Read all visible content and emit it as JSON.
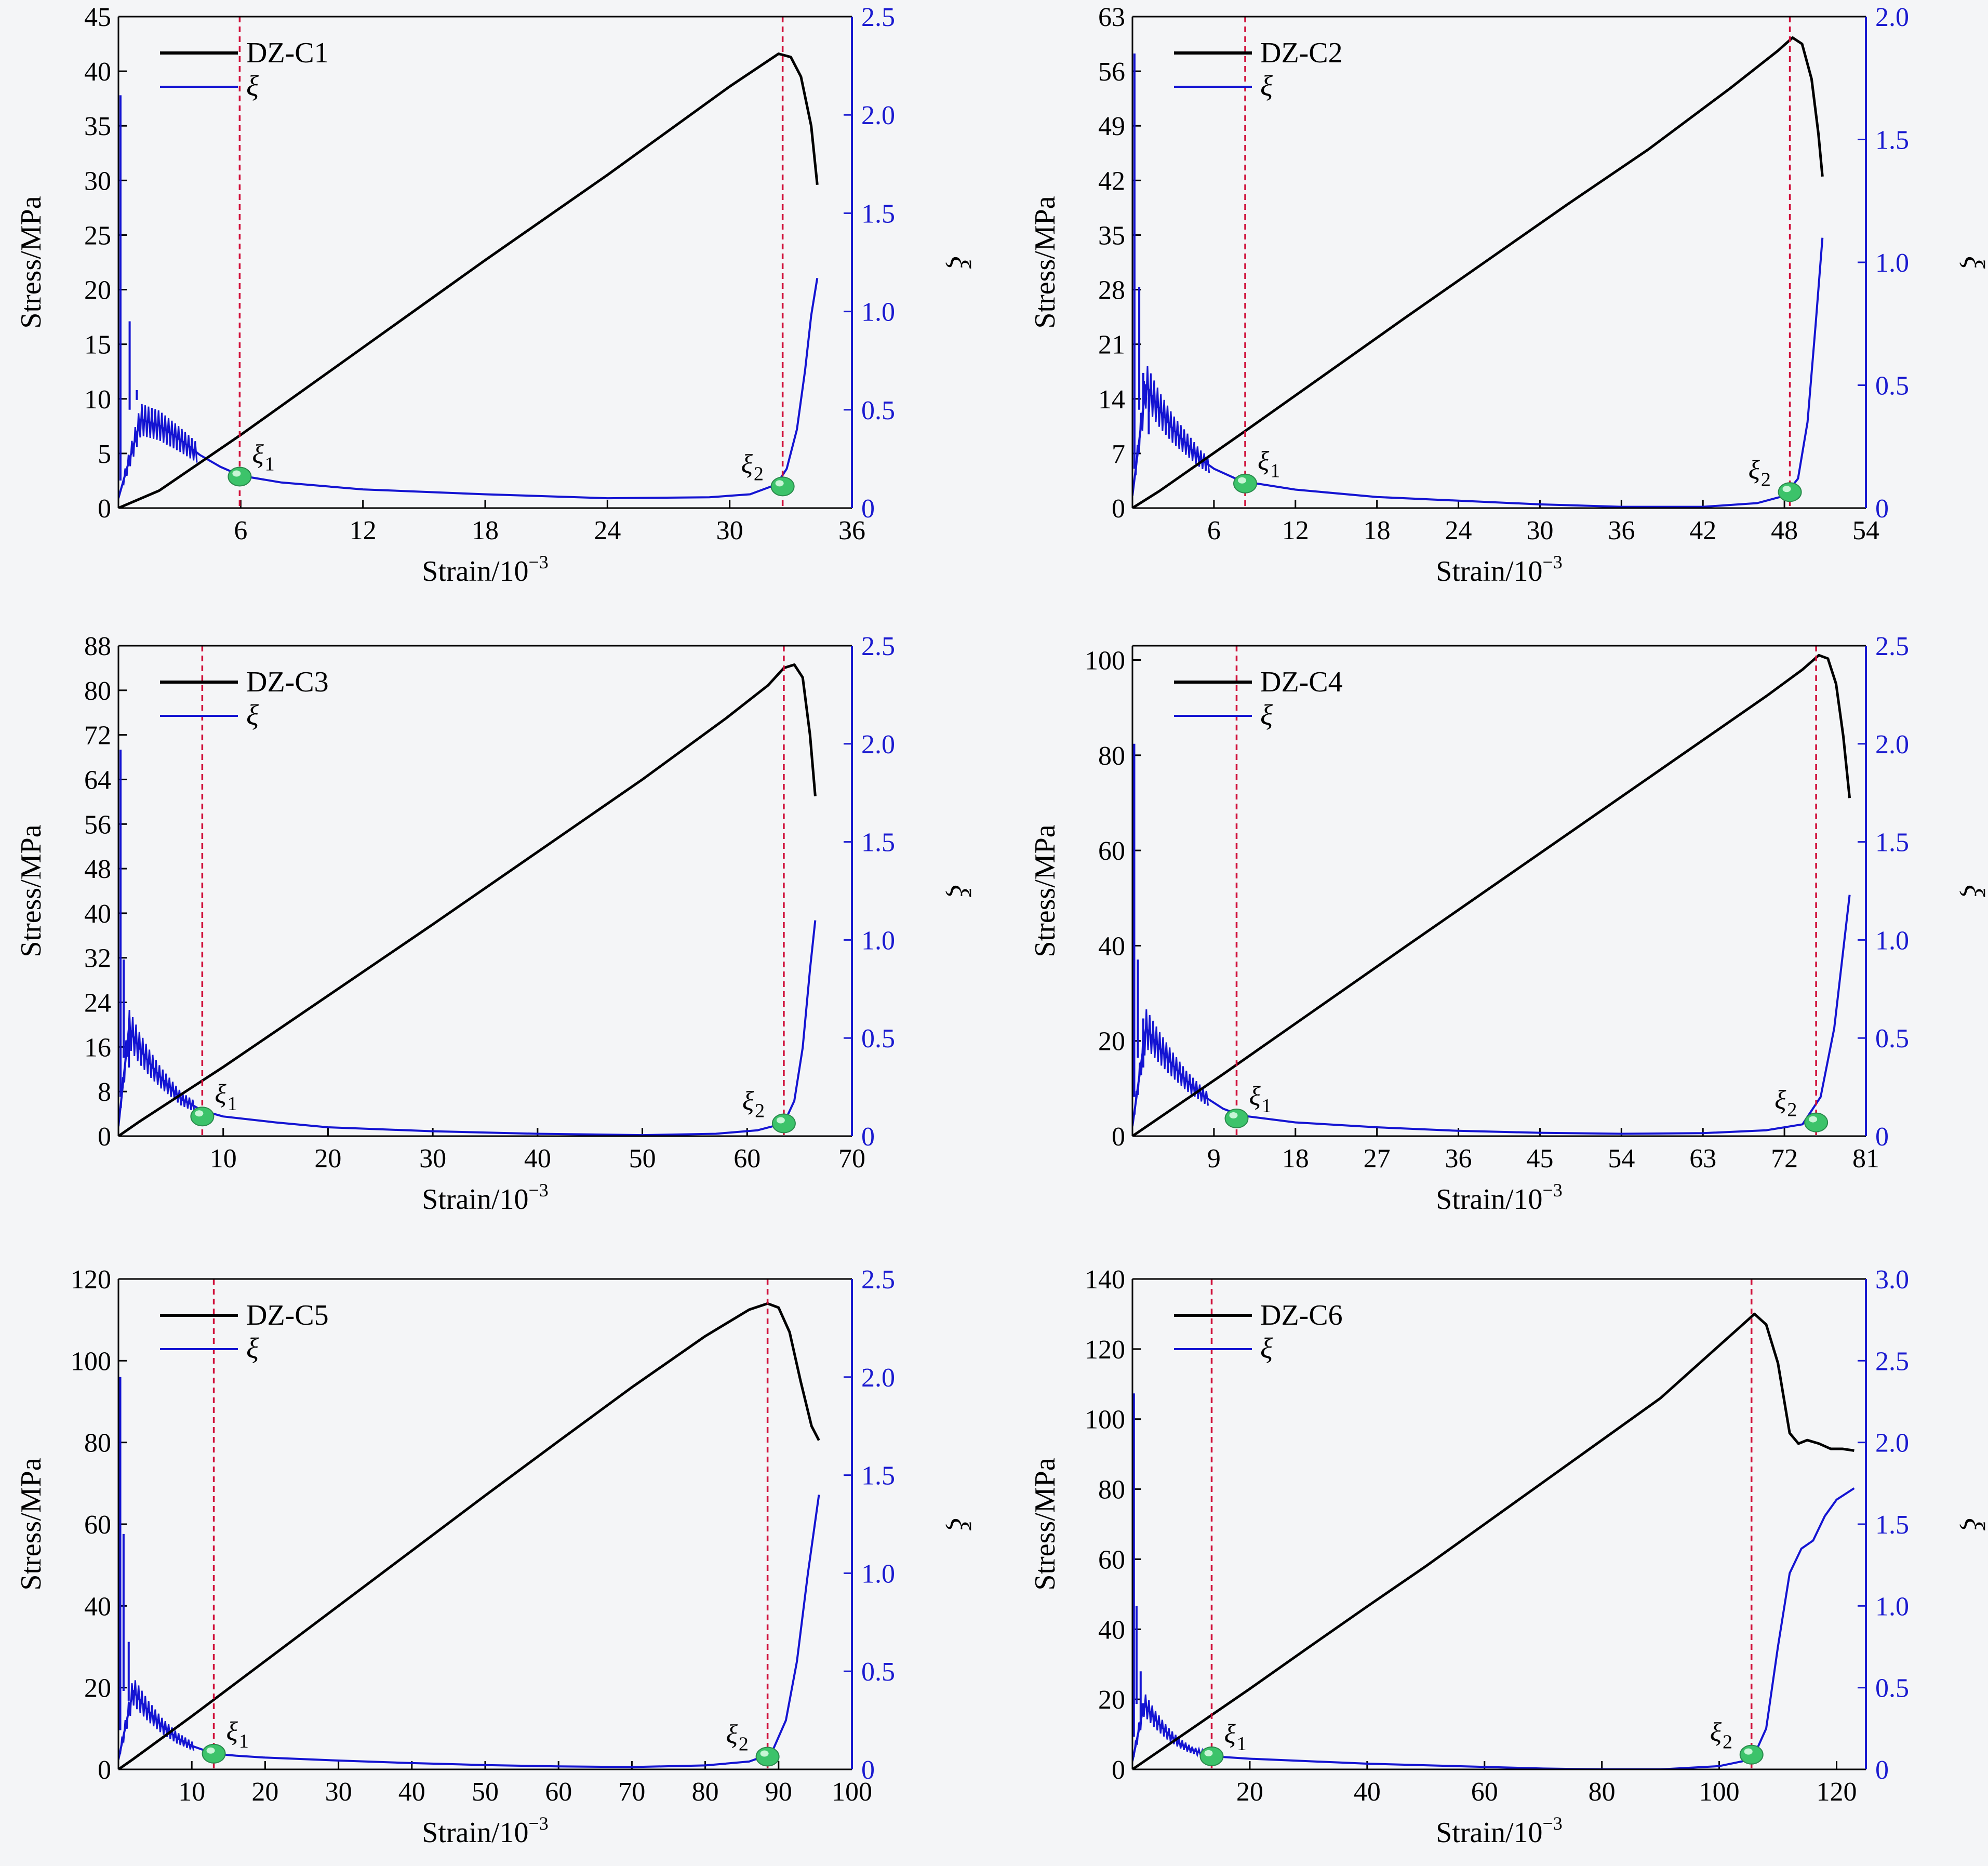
{
  "colors": {
    "stress": "#000000",
    "xi": "#1414d2",
    "marker": "#d0103a",
    "right_axis": "#1a1ad0",
    "bead": "#3cc36a",
    "background": "#f4f5f7"
  },
  "chart_data": [
    {
      "type": "line",
      "title": "DZ-C1",
      "xlabel": "Strain/10",
      "xlabel_exp": "−3",
      "ylabel": "Stress/MPa",
      "y2label": "ξ",
      "xlim": [
        0,
        36
      ],
      "ylim": [
        0,
        45
      ],
      "y2lim": [
        0,
        2.5
      ],
      "xticks": [
        6,
        12,
        18,
        24,
        30,
        36
      ],
      "yticks": [
        0,
        5,
        10,
        15,
        20,
        25,
        30,
        35,
        40,
        45
      ],
      "y2ticks": [
        "0",
        "0.5",
        "1.0",
        "1.5",
        "2.0",
        "2.5"
      ],
      "legend": [
        "DZ-C1",
        "ξ"
      ],
      "markers": [
        {
          "x": 5.95,
          "y2": 0.16,
          "label": "ξ",
          "sub": "1",
          "side": "right"
        },
        {
          "x": 32.6,
          "y2": 0.11,
          "label": "ξ",
          "sub": "2",
          "side": "left"
        }
      ],
      "stress": {
        "name": "DZ-C1",
        "x": [
          0,
          2,
          6,
          12,
          18,
          24,
          30,
          31.6,
          32.4,
          33,
          33.5,
          34,
          34.3
        ],
        "y": [
          0,
          1.6,
          6.7,
          14.7,
          22.7,
          30.5,
          38.6,
          40.6,
          41.6,
          41.3,
          39.5,
          35,
          29.6
        ]
      },
      "xi": {
        "name": "ξ",
        "spikes": [
          [
            0.1,
            0.14,
            2.1
          ],
          [
            0.55,
            0.5,
            0.95
          ],
          [
            0.9,
            0.55,
            0.6
          ]
        ],
        "x": [
          0,
          1.1,
          2,
          3,
          4,
          5,
          6,
          8,
          12,
          18,
          24,
          29,
          31,
          32.3,
          32.8,
          33.3,
          33.7,
          34.0,
          34.3
        ],
        "y": [
          0.05,
          0.45,
          0.42,
          0.35,
          0.27,
          0.21,
          0.165,
          0.13,
          0.095,
          0.07,
          0.05,
          0.055,
          0.07,
          0.12,
          0.2,
          0.4,
          0.7,
          0.98,
          1.17
        ]
      }
    },
    {
      "type": "line",
      "title": "DZ-C2",
      "xlabel": "Strain/10",
      "xlabel_exp": "−3",
      "ylabel": "Stress/MPa",
      "y2label": "ξ",
      "xlim": [
        0,
        54
      ],
      "ylim": [
        0,
        63
      ],
      "y2lim": [
        0,
        2.0
      ],
      "xticks": [
        6,
        12,
        18,
        24,
        30,
        36,
        42,
        48,
        54
      ],
      "yticks": [
        0,
        7,
        14,
        21,
        28,
        35,
        42,
        49,
        56,
        63
      ],
      "y2ticks": [
        "0",
        "0.5",
        "1.0",
        "1.5",
        "2.0"
      ],
      "legend": [
        "DZ-C2",
        "ξ"
      ],
      "markers": [
        {
          "x": 8.3,
          "y2": 0.1,
          "label": "ξ",
          "sub": "1",
          "side": "right"
        },
        {
          "x": 48.4,
          "y2": 0.065,
          "label": "ξ",
          "sub": "2",
          "side": "left"
        }
      ],
      "stress": {
        "name": "DZ-C2",
        "x": [
          0,
          2,
          8,
          14,
          20,
          26,
          32,
          38,
          44,
          47.5,
          48.6,
          49.3,
          50,
          50.5,
          50.8
        ],
        "y": [
          0,
          2.2,
          9.5,
          16.9,
          24.3,
          31.6,
          38.9,
          46,
          53.8,
          58.6,
          60.3,
          59.5,
          55,
          48,
          42.5
        ]
      },
      "xi": {
        "name": "ξ",
        "spikes": [
          [
            0.15,
            0.16,
            1.85
          ],
          [
            0.5,
            0.4,
            0.9
          ],
          [
            0.8,
            0.4,
            0.55
          ],
          [
            1.2,
            0.3,
            0.45
          ]
        ],
        "x": [
          0,
          1,
          2,
          3,
          4,
          5,
          6,
          8,
          12,
          18,
          24,
          30,
          36,
          42,
          46,
          48,
          49,
          49.7,
          50.3,
          50.8
        ],
        "y": [
          0.05,
          0.5,
          0.4,
          0.32,
          0.26,
          0.2,
          0.16,
          0.11,
          0.075,
          0.045,
          0.03,
          0.015,
          0.005,
          0.005,
          0.02,
          0.05,
          0.12,
          0.35,
          0.75,
          1.1
        ]
      }
    },
    {
      "type": "line",
      "title": "DZ-C3",
      "xlabel": "Strain/10",
      "xlabel_exp": "−3",
      "ylabel": "Stress/MPa",
      "y2label": "ξ",
      "xlim": [
        0,
        70
      ],
      "ylim": [
        0,
        88
      ],
      "y2lim": [
        0,
        2.5
      ],
      "xticks": [
        10,
        20,
        30,
        40,
        50,
        60,
        70
      ],
      "yticks": [
        0,
        8,
        16,
        24,
        32,
        40,
        48,
        56,
        64,
        72,
        80,
        88
      ],
      "y2ticks": [
        "0",
        "0.5",
        "1.0",
        "1.5",
        "2.0",
        "2.5"
      ],
      "legend": [
        "DZ-C3",
        "ξ"
      ],
      "markers": [
        {
          "x": 8,
          "y2": 0.1,
          "label": "ξ",
          "sub": "1",
          "side": "right"
        },
        {
          "x": 63.5,
          "y2": 0.065,
          "label": "ξ",
          "sub": "2",
          "side": "left"
        }
      ],
      "stress": {
        "name": "DZ-C3",
        "x": [
          0,
          2,
          10,
          20,
          30,
          40,
          50,
          58,
          62,
          63.5,
          64.5,
          65.3,
          66,
          66.5
        ],
        "y": [
          0,
          2.6,
          12.4,
          25.2,
          38,
          51,
          64,
          75,
          80.9,
          84,
          84.6,
          82.3,
          72,
          61
        ]
      },
      "xi": {
        "name": "ξ",
        "spikes": [
          [
            0.2,
            0.2,
            1.97
          ],
          [
            0.5,
            0.4,
            0.9
          ],
          [
            1.0,
            0.35,
            0.6
          ]
        ],
        "x": [
          0,
          1,
          2,
          3,
          4,
          6,
          8,
          10,
          15,
          20,
          30,
          40,
          50,
          57,
          61,
          63.5,
          64.5,
          65.3,
          66,
          66.5
        ],
        "y": [
          0.05,
          0.55,
          0.45,
          0.37,
          0.3,
          0.19,
          0.13,
          0.1,
          0.07,
          0.045,
          0.025,
          0.012,
          0.005,
          0.012,
          0.03,
          0.065,
          0.18,
          0.45,
          0.85,
          1.1
        ]
      }
    },
    {
      "type": "line",
      "title": "DZ-C4",
      "xlabel": "Strain/10",
      "xlabel_exp": "−3",
      "ylabel": "Stress/MPa",
      "y2label": "ξ",
      "xlim": [
        0,
        81
      ],
      "ylim": [
        0,
        103
      ],
      "y2lim": [
        0,
        2.5
      ],
      "xticks": [
        9,
        18,
        27,
        36,
        45,
        54,
        63,
        72,
        81
      ],
      "yticks": [
        0,
        20,
        40,
        60,
        80,
        100
      ],
      "y2ticks": [
        "0",
        "0.5",
        "1.0",
        "1.5",
        "2.0",
        "2.5"
      ],
      "legend": [
        "DZ-C4",
        "ξ"
      ],
      "markers": [
        {
          "x": 11.5,
          "y2": 0.09,
          "label": "ξ",
          "sub": "1",
          "side": "right"
        },
        {
          "x": 75.5,
          "y2": 0.07,
          "label": "ξ",
          "sub": "2",
          "side": "left"
        }
      ],
      "stress": {
        "name": "DZ-C4",
        "x": [
          0,
          2,
          10,
          20,
          30,
          40,
          50,
          60,
          70,
          74,
          75.8,
          76.8,
          77.7,
          78.5,
          79.2
        ],
        "y": [
          0,
          2.6,
          13,
          26.3,
          39.6,
          52.8,
          66,
          79.2,
          92.4,
          98,
          101,
          100.3,
          95,
          84,
          71
        ]
      },
      "xi": {
        "name": "ξ",
        "spikes": [
          [
            0.2,
            0.2,
            2.0
          ],
          [
            0.6,
            0.4,
            0.9
          ],
          [
            1.2,
            0.35,
            0.6
          ]
        ],
        "x": [
          0,
          1.5,
          3,
          4.5,
          6,
          8,
          10,
          12,
          18,
          27,
          36,
          45,
          54,
          63,
          70,
          74,
          76,
          77.5,
          78.5,
          79.2
        ],
        "y": [
          0.05,
          0.55,
          0.45,
          0.36,
          0.28,
          0.2,
          0.14,
          0.105,
          0.07,
          0.045,
          0.027,
          0.017,
          0.012,
          0.015,
          0.03,
          0.06,
          0.2,
          0.55,
          0.95,
          1.23
        ]
      }
    },
    {
      "type": "line",
      "title": "DZ-C5",
      "xlabel": "Strain/10",
      "xlabel_exp": "−3",
      "ylabel": "Stress/MPa",
      "y2label": "ξ",
      "xlim": [
        0,
        100
      ],
      "ylim": [
        0,
        120
      ],
      "y2lim": [
        0,
        2.5
      ],
      "xticks": [
        10,
        20,
        30,
        40,
        50,
        60,
        70,
        80,
        90,
        100
      ],
      "yticks": [
        0,
        20,
        40,
        60,
        80,
        100,
        120
      ],
      "y2ticks": [
        "0",
        "0.5",
        "1.0",
        "1.5",
        "2.0",
        "2.5"
      ],
      "legend": [
        "DZ-C5",
        "ξ"
      ],
      "markers": [
        {
          "x": 13,
          "y2": 0.08,
          "label": "ξ",
          "sub": "1",
          "side": "right"
        },
        {
          "x": 88.5,
          "y2": 0.065,
          "label": "ξ",
          "sub": "2",
          "side": "left"
        }
      ],
      "stress": {
        "name": "DZ-C5",
        "x": [
          0,
          2,
          10,
          20,
          30,
          40,
          50,
          60,
          70,
          80,
          86,
          88.5,
          90,
          91.5,
          93,
          94.5,
          95.5
        ],
        "y": [
          0,
          2.5,
          13,
          26.5,
          40,
          53.5,
          67,
          80.3,
          93.5,
          106,
          112.5,
          114,
          113,
          107,
          95,
          84,
          80.5
        ]
      },
      "xi": {
        "name": "ξ",
        "spikes": [
          [
            0.25,
            0.2,
            2.0
          ],
          [
            0.7,
            0.4,
            1.2
          ],
          [
            1.4,
            0.35,
            0.65
          ]
        ],
        "x": [
          0,
          2,
          4,
          6,
          8,
          10,
          13,
          16,
          20,
          30,
          40,
          50,
          60,
          70,
          80,
          86,
          89,
          91,
          92.5,
          94,
          95.5
        ],
        "y": [
          0.05,
          0.4,
          0.3,
          0.22,
          0.16,
          0.12,
          0.08,
          0.07,
          0.06,
          0.045,
          0.032,
          0.022,
          0.015,
          0.012,
          0.02,
          0.04,
          0.08,
          0.25,
          0.55,
          1.0,
          1.4
        ]
      }
    },
    {
      "type": "line",
      "title": "DZ-C6",
      "xlabel": "Strain/10",
      "xlabel_exp": "−3",
      "ylabel": "Stress/MPa",
      "y2label": "ξ",
      "xlim": [
        0,
        125
      ],
      "ylim": [
        0,
        140
      ],
      "y2lim": [
        0,
        3.0
      ],
      "xticks": [
        20,
        40,
        60,
        80,
        100,
        120
      ],
      "yticks": [
        0,
        20,
        40,
        60,
        80,
        100,
        120,
        140
      ],
      "y2ticks": [
        "0",
        "0.5",
        "1.0",
        "1.5",
        "2.0",
        "2.5",
        "3.0"
      ],
      "legend": [
        "DZ-C6",
        "ξ"
      ],
      "markers": [
        {
          "x": 13.5,
          "y2": 0.08,
          "label": "ξ",
          "sub": "1",
          "side": "right"
        },
        {
          "x": 105.5,
          "y2": 0.09,
          "label": "ξ",
          "sub": "2",
          "side": "left"
        }
      ],
      "stress": {
        "name": "DZ-C6",
        "x": [
          0,
          2,
          10,
          20,
          30,
          40,
          50,
          60,
          70,
          80,
          90,
          100,
          104,
          106,
          108,
          110,
          112,
          113.5,
          115,
          117,
          119,
          121,
          123
        ],
        "y": [
          0,
          2.3,
          11.5,
          23,
          34.8,
          46.5,
          58,
          70,
          82,
          94,
          106,
          121,
          127,
          130,
          127,
          116,
          96,
          93,
          94,
          93,
          91.5,
          91.5,
          91
        ]
      },
      "xi": {
        "name": "ξ",
        "spikes": [
          [
            0.25,
            0.2,
            2.3
          ],
          [
            0.7,
            0.4,
            1.0
          ],
          [
            1.4,
            0.3,
            0.6
          ]
        ],
        "x": [
          0,
          2,
          4,
          6,
          8,
          10,
          13.5,
          20,
          30,
          40,
          50,
          60,
          70,
          80,
          90,
          100,
          104,
          106,
          108,
          110,
          112,
          114,
          116,
          118,
          120,
          123
        ],
        "y": [
          0.05,
          0.4,
          0.3,
          0.22,
          0.16,
          0.12,
          0.08,
          0.065,
          0.05,
          0.035,
          0.025,
          0.015,
          0.005,
          0,
          0,
          0.02,
          0.05,
          0.09,
          0.25,
          0.75,
          1.2,
          1.35,
          1.4,
          1.55,
          1.65,
          1.72
        ]
      }
    }
  ]
}
